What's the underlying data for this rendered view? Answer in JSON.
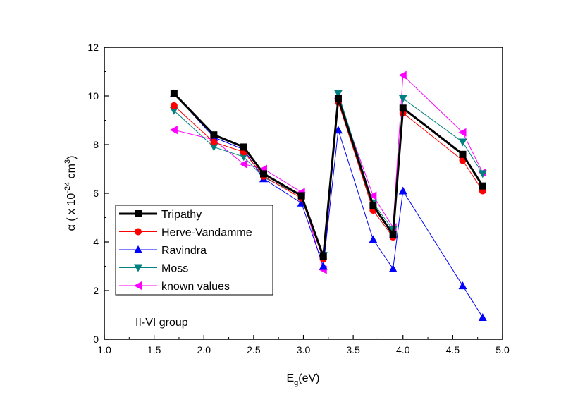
{
  "chart_data": {
    "type": "line",
    "xlabel": "E",
    "xlabel_sub": "g",
    "xlabel_suffix": "(eV)",
    "ylabel_prefix": "α ( x 10",
    "ylabel_exp1": "-24",
    "ylabel_mid": " cm",
    "ylabel_exp2": "3",
    "ylabel_suffix": ")",
    "xlim": [
      1.0,
      5.0
    ],
    "ylim": [
      0,
      12
    ],
    "xticks": [
      "1.0",
      "1.5",
      "2.0",
      "2.5",
      "3.0",
      "3.5",
      "4.0",
      "4.5",
      "5.0"
    ],
    "yticks": [
      "0",
      "2",
      "4",
      "6",
      "8",
      "10",
      "12"
    ],
    "annotation": "II-VI group",
    "legend_position": "lower-left",
    "series": [
      {
        "name": "Tripathy",
        "color": "#000000",
        "marker": "square",
        "x": [
          1.7,
          2.1,
          2.4,
          2.6,
          2.98,
          3.2,
          3.35,
          3.7,
          3.9,
          4.0,
          4.6,
          4.8
        ],
        "y": [
          10.1,
          8.4,
          7.9,
          6.8,
          5.9,
          3.4,
          9.9,
          5.5,
          4.3,
          9.5,
          7.6,
          6.3
        ]
      },
      {
        "name": "Herve-Vandamme",
        "color": "#ff0000",
        "marker": "circle",
        "x": [
          1.7,
          2.1,
          2.4,
          2.6,
          2.98,
          3.2,
          3.35,
          3.7,
          3.9,
          4.0,
          4.6,
          4.8
        ],
        "y": [
          9.6,
          8.1,
          7.7,
          6.7,
          5.8,
          3.3,
          9.75,
          5.3,
          4.2,
          9.3,
          7.35,
          6.1
        ]
      },
      {
        "name": "Ravindra",
        "color": "#0000ff",
        "marker": "triangle-up",
        "x": [
          1.7,
          2.1,
          2.4,
          2.6,
          2.98,
          3.2,
          3.35,
          3.7,
          3.9,
          4.0,
          4.6,
          4.8
        ],
        "y": [
          10.1,
          8.3,
          7.8,
          6.6,
          5.6,
          3.0,
          8.6,
          4.1,
          2.9,
          6.1,
          2.2,
          0.9
        ]
      },
      {
        "name": "Moss",
        "color": "#008080",
        "marker": "triangle-down",
        "x": [
          1.7,
          2.1,
          2.4,
          2.6,
          2.98,
          3.2,
          3.35,
          3.7,
          3.9,
          4.0,
          4.6,
          4.8
        ],
        "y": [
          9.4,
          7.9,
          7.5,
          6.65,
          5.9,
          3.45,
          10.1,
          5.6,
          4.5,
          9.9,
          8.1,
          6.8
        ]
      },
      {
        "name": "known values",
        "color": "#ff00ff",
        "marker": "triangle-left",
        "x": [
          1.7,
          2.1,
          2.4,
          2.6,
          2.98,
          3.2,
          3.35,
          3.7,
          3.9,
          4.0,
          4.6,
          4.8
        ],
        "y": [
          8.6,
          8.2,
          7.2,
          7.0,
          6.05,
          2.85,
          9.9,
          5.9,
          4.6,
          10.85,
          8.5,
          6.85
        ]
      }
    ]
  }
}
